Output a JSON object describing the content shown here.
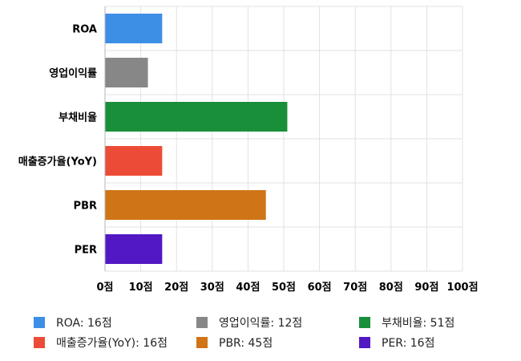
{
  "chart_data": {
    "type": "bar",
    "orientation": "horizontal",
    "categories": [
      "ROA",
      "영업이익률",
      "부채비율",
      "매출증가율(YoY)",
      "PBR",
      "PER"
    ],
    "values": [
      16,
      12,
      51,
      16,
      45,
      16
    ],
    "colors": [
      "#3d8fe6",
      "#878787",
      "#1a8f3a",
      "#ec4c37",
      "#cf7417",
      "#5218c4"
    ],
    "xlim": [
      0,
      100
    ],
    "xticks": [
      0,
      10,
      20,
      30,
      40,
      50,
      60,
      70,
      80,
      90,
      100
    ],
    "tick_suffix": "점",
    "grid": true,
    "legend": {
      "position": "bottom",
      "entries": [
        {
          "label": "ROA: 16점",
          "color": "#3d8fe6"
        },
        {
          "label": "영업이익률: 12점",
          "color": "#878787"
        },
        {
          "label": "부채비율: 51점",
          "color": "#1a8f3a"
        },
        {
          "label": "매출증가율(YoY): 16점",
          "color": "#ec4c37"
        },
        {
          "label": "PBR: 45점",
          "color": "#cf7417"
        },
        {
          "label": "PER: 16점",
          "color": "#5218c4"
        }
      ]
    }
  }
}
